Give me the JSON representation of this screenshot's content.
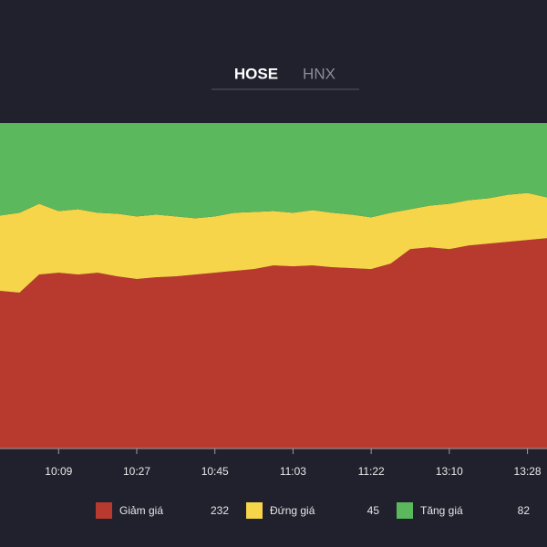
{
  "tabs": [
    "HOSE",
    "HNX"
  ],
  "chart_data": {
    "type": "area",
    "stacked": true,
    "categories": [
      null,
      null,
      null,
      "10:09",
      null,
      null,
      null,
      "10:27",
      null,
      null,
      null,
      "10:45",
      null,
      null,
      null,
      "11:03",
      null,
      null,
      null,
      "11:22",
      null,
      null,
      null,
      "13:10",
      null,
      null,
      null,
      "13:28",
      null
    ],
    "ylim": [
      0,
      359
    ],
    "series": [
      {
        "name": "Giảm giá",
        "color": "#b83a2f",
        "values": [
          174,
          172,
          192,
          194,
          192,
          194,
          190,
          187,
          189,
          190,
          192,
          194,
          196,
          198,
          202,
          201,
          202,
          200,
          199,
          198,
          204,
          220,
          222,
          220,
          224,
          226,
          228,
          230,
          232
        ]
      },
      {
        "name": "Đứng giá",
        "color": "#f7d54a",
        "values": [
          83,
          88,
          78,
          68,
          72,
          66,
          69,
          69,
          69,
          66,
          62,
          62,
          64,
          63,
          60,
          59,
          61,
          60,
          59,
          57,
          56,
          44,
          46,
          50,
          50,
          50,
          52,
          52,
          45
        ]
      },
      {
        "name": "Tăng giá",
        "color": "#5cb85c",
        "values": [
          102,
          99,
          89,
          97,
          95,
          99,
          100,
          103,
          101,
          103,
          105,
          103,
          99,
          98,
          97,
          99,
          96,
          99,
          101,
          104,
          99,
          95,
          91,
          89,
          85,
          83,
          79,
          77,
          82
        ]
      }
    ]
  }
}
